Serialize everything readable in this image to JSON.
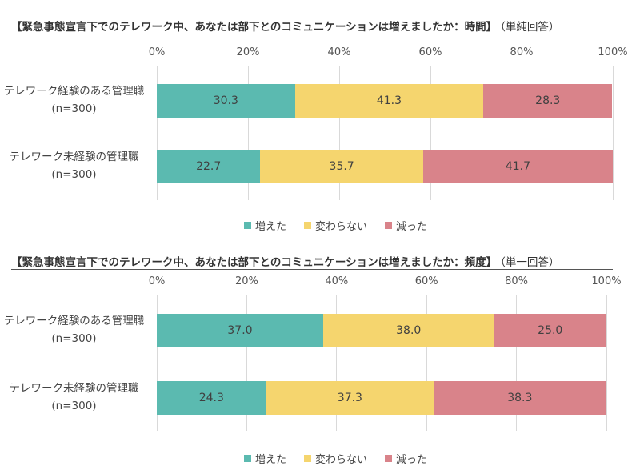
{
  "colors": {
    "increased": "#5BBAB0",
    "unchanged": "#F5D56E",
    "decreased": "#D9838A"
  },
  "chart_data": [
    {
      "type": "bar",
      "orientation": "horizontal",
      "stacked": true,
      "title": "【緊急事態宣言下でのテレワーク中、あなたは部下とのコミュニケーションは増えましたか：時間】",
      "title_note": "（単純回答）",
      "categories": [
        {
          "line1": "テレワーク経験のある管理職",
          "line2": "(n=300)"
        },
        {
          "line1": "テレワーク未経験の管理職",
          "line2": "(n=300)"
        }
      ],
      "series": [
        {
          "name": "増えた",
          "values": [
            30.3,
            22.7
          ]
        },
        {
          "name": "変わらない",
          "values": [
            41.3,
            35.7
          ]
        },
        {
          "name": "減った",
          "values": [
            28.3,
            41.7
          ]
        }
      ],
      "xticks": [
        "0%",
        "20%",
        "40%",
        "60%",
        "80%",
        "100%"
      ],
      "xlim": [
        0,
        100
      ],
      "grid": true,
      "legend_position": "bottom"
    },
    {
      "type": "bar",
      "orientation": "horizontal",
      "stacked": true,
      "title": "【緊急事態宣言下でのテレワーク中、あなたは部下とのコミュニケーションは増えましたか：頻度】",
      "title_note": "（単一回答）",
      "categories": [
        {
          "line1": "テレワーク経験のある管理職",
          "line2": "(n=300)"
        },
        {
          "line1": "テレワーク未経験の管理職",
          "line2": "(n=300)"
        }
      ],
      "series": [
        {
          "name": "増えた",
          "values": [
            37.0,
            24.3
          ]
        },
        {
          "name": "変わらない",
          "values": [
            38.0,
            37.3
          ]
        },
        {
          "name": "減った",
          "values": [
            25.0,
            38.3
          ]
        }
      ],
      "xticks": [
        "0%",
        "20%",
        "40%",
        "60%",
        "80%",
        "100%"
      ],
      "xlim": [
        0,
        100
      ],
      "grid": true,
      "legend_position": "bottom"
    }
  ]
}
